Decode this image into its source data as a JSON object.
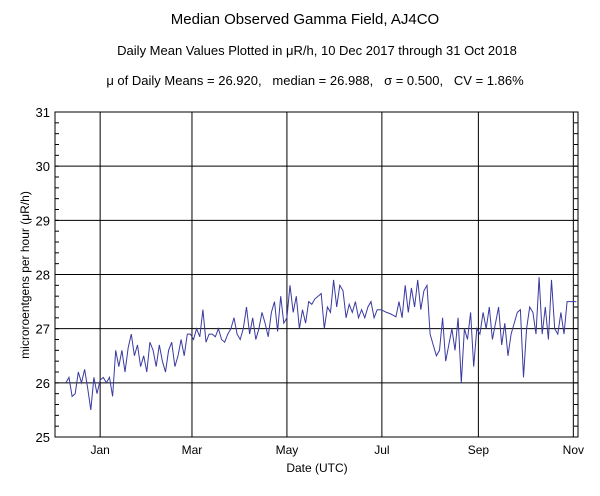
{
  "chart_data": {
    "type": "line",
    "title": "Median Observed Gamma Field, AJ4CO",
    "subtitle": "Daily Mean Values Plotted in μR/h, 10 Dec 2017 through 31 Oct 2018",
    "stats_line": "μ of Daily Means = 26.920,   median = 26.988,   σ = 0.500,   CV = 1.86%",
    "xlabel": "Date (UTC)",
    "ylabel": "microroentgens per hour (μR/h)",
    "ylim": [
      25,
      31
    ],
    "yticks": [
      "25",
      "26",
      "27",
      "28",
      "29",
      "30",
      "31"
    ],
    "xticks": [
      {
        "label": "Jan",
        "day": 22
      },
      {
        "label": "Mar",
        "day": 81
      },
      {
        "label": "May",
        "day": 142
      },
      {
        "label": "Jul",
        "day": 203
      },
      {
        "label": "Sep",
        "day": 265
      },
      {
        "label": "Nov",
        "day": 326
      }
    ],
    "x_unit": "days since 10 Dec 2017",
    "xlim": [
      -7,
      329
    ],
    "grid": true,
    "line_color": "#3a3aa0",
    "series": [
      {
        "name": "daily mean",
        "start_day": 0,
        "step_days": 2,
        "values": [
          26.0,
          26.1,
          25.75,
          25.8,
          26.2,
          26.0,
          26.25,
          25.9,
          25.5,
          26.1,
          25.8,
          26.05,
          26.1,
          26.0,
          26.1,
          25.75,
          26.6,
          26.3,
          26.6,
          26.2,
          26.65,
          26.9,
          26.5,
          26.7,
          26.3,
          26.5,
          26.2,
          26.75,
          26.6,
          26.3,
          26.7,
          26.4,
          26.2,
          26.6,
          26.75,
          26.3,
          26.5,
          26.8,
          26.5,
          26.9,
          26.9,
          26.8,
          27.0,
          26.85,
          27.35,
          26.75,
          26.9,
          26.9,
          26.85,
          27.0,
          26.8,
          26.75,
          26.9,
          27.0,
          27.2,
          26.9,
          26.8,
          27.0,
          27.4,
          26.9,
          27.2,
          26.8,
          27.0,
          27.3,
          27.1,
          26.85,
          27.3,
          27.5,
          26.95,
          27.6,
          27.1,
          27.2,
          27.8,
          27.3,
          27.6,
          27.0,
          27.35,
          27.1,
          27.5,
          27.45,
          27.55,
          27.6,
          27.65,
          27.0,
          27.4,
          27.3,
          27.9,
          27.4,
          27.8,
          27.7,
          27.2,
          27.45,
          27.3,
          27.5,
          27.2,
          27.35,
          27.2,
          27.4,
          27.5,
          27.2,
          27.35,
          27.35,
          27.33,
          27.3,
          27.28,
          27.25,
          27.22,
          27.5,
          27.2,
          27.8,
          27.3,
          27.75,
          27.4,
          27.9,
          27.35,
          27.7,
          27.8,
          26.9,
          26.7,
          26.5,
          26.6,
          27.2,
          26.4,
          26.7,
          27.0,
          26.6,
          27.2,
          26.0,
          27.0,
          26.8,
          27.3,
          26.3,
          27.0,
          26.9,
          27.3,
          27.0,
          27.4,
          26.8,
          27.1,
          27.4,
          26.7,
          27.1,
          26.5,
          26.9,
          27.1,
          27.3,
          27.35,
          26.1,
          27.0,
          27.4,
          27.3,
          26.9,
          27.95,
          26.9,
          27.4,
          26.8,
          27.9,
          27.0,
          26.9,
          27.3,
          26.9,
          27.5,
          27.5
        ]
      }
    ]
  }
}
